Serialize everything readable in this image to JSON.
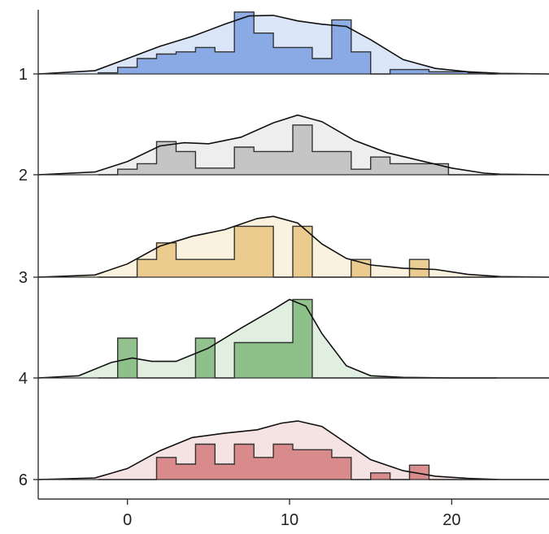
{
  "chart_data": {
    "type": "ridgeline",
    "title": "",
    "xlabel": "",
    "ylabel": "",
    "xlim": [
      -5.5,
      26
    ],
    "x_ticks": [
      0,
      10,
      20
    ],
    "x_tick_labels": [
      "0",
      "10",
      "20"
    ],
    "categories": [
      "1",
      "2",
      "3",
      "4",
      "6"
    ],
    "bin_width": 1.2,
    "hist_x_range": [
      -1.8,
      22.8
    ],
    "series": [
      {
        "category": "1",
        "fill_color": "#a8c0ee",
        "hist_color": "#7ba0e2",
        "bin_edges": [
          -1.8,
          -0.6,
          0.6,
          1.8,
          3.0,
          4.2,
          5.4,
          6.6,
          7.8,
          9.0,
          10.2,
          11.4,
          12.6,
          13.8,
          15.0,
          16.2,
          17.4,
          18.6,
          19.8,
          21.0,
          22.2,
          22.8
        ],
        "bin_heights": [
          0.02,
          0.12,
          0.28,
          0.36,
          0.4,
          0.48,
          0.4,
          1.12,
          0.74,
          0.48,
          0.48,
          0.28,
          0.98,
          0.4,
          0.0,
          0.08,
          0.08,
          0.04,
          0.04,
          0.02,
          0.0
        ],
        "density_x": [
          -5.5,
          -2.0,
          0.0,
          2.0,
          4.0,
          6.0,
          7.5,
          9.0,
          10.5,
          12.0,
          13.5,
          15.0,
          17.0,
          19.0,
          21.0,
          23.0,
          26.0
        ],
        "density_y": [
          0.0,
          0.06,
          0.28,
          0.5,
          0.68,
          0.9,
          1.05,
          1.06,
          0.96,
          0.9,
          0.86,
          0.62,
          0.26,
          0.1,
          0.04,
          0.01,
          0.0
        ]
      },
      {
        "category": "2",
        "fill_color": "#d6d6d6",
        "hist_color": "#bdbdbd",
        "bin_edges": [
          -1.8,
          -0.6,
          0.6,
          1.8,
          3.0,
          4.2,
          5.4,
          6.6,
          7.8,
          9.0,
          10.2,
          11.4,
          12.6,
          13.8,
          15.0,
          16.2,
          17.4,
          18.6,
          19.8,
          21.0,
          22.2,
          22.8
        ],
        "bin_heights": [
          0.0,
          0.1,
          0.2,
          0.6,
          0.42,
          0.12,
          0.12,
          0.5,
          0.42,
          0.42,
          0.9,
          0.42,
          0.42,
          0.1,
          0.32,
          0.2,
          0.2,
          0.2,
          0.0,
          0.0,
          0.0
        ],
        "density_x": [
          -5.5,
          -2.0,
          0.0,
          2.0,
          3.5,
          5.0,
          7.0,
          9.0,
          10.5,
          12.0,
          14.0,
          16.0,
          18.0,
          20.0,
          22.0,
          23.0,
          26.0
        ],
        "density_y": [
          0.0,
          0.05,
          0.24,
          0.52,
          0.58,
          0.56,
          0.68,
          0.94,
          1.08,
          0.96,
          0.62,
          0.4,
          0.26,
          0.12,
          0.03,
          0.01,
          0.0
        ]
      },
      {
        "category": "3",
        "fill_color": "#f4dfb0",
        "hist_color": "#e8c580",
        "bin_edges": [
          -1.8,
          -0.6,
          0.6,
          1.8,
          3.0,
          4.2,
          5.4,
          6.6,
          7.8,
          9.0,
          10.2,
          11.4,
          12.6,
          13.8,
          15.0,
          16.2,
          17.4,
          18.6,
          19.8,
          21.0,
          22.2,
          22.8
        ],
        "bin_heights": [
          0.0,
          0.0,
          0.32,
          0.62,
          0.32,
          0.32,
          0.32,
          0.92,
          0.92,
          0.0,
          0.92,
          0.0,
          0.0,
          0.32,
          0.0,
          0.0,
          0.32,
          0.0,
          0.0,
          0.0,
          0.0
        ],
        "density_x": [
          -5.5,
          -2.0,
          0.0,
          2.0,
          4.0,
          6.0,
          8.0,
          9.0,
          10.5,
          12.0,
          13.5,
          15.0,
          17.0,
          19.0,
          21.0,
          23.0,
          26.0
        ],
        "density_y": [
          0.0,
          0.04,
          0.24,
          0.56,
          0.74,
          0.86,
          1.06,
          1.1,
          0.98,
          0.6,
          0.34,
          0.22,
          0.16,
          0.14,
          0.05,
          0.01,
          0.0
        ]
      },
      {
        "category": "4",
        "fill_color": "#b8d9b4",
        "hist_color": "#7fb77a",
        "bin_edges": [
          -1.8,
          -0.6,
          0.6,
          1.8,
          3.0,
          4.2,
          5.4,
          6.6,
          7.8,
          9.0,
          10.2,
          11.4,
          12.6,
          13.8,
          15.0,
          16.2,
          17.4,
          18.6,
          19.8,
          21.0,
          22.2,
          22.8
        ],
        "bin_heights": [
          0.0,
          0.72,
          0.0,
          0.0,
          0.0,
          0.72,
          0.0,
          0.64,
          0.64,
          0.64,
          1.42,
          0.0,
          0.0,
          0.0,
          0.0,
          0.0,
          0.0,
          0.0,
          0.0,
          0.0,
          0.0
        ],
        "density_x": [
          -5.5,
          -3.0,
          -1.0,
          0.3,
          1.5,
          3.0,
          5.0,
          7.0,
          9.0,
          10.0,
          11.0,
          12.0,
          13.5,
          15.0,
          17.0,
          20.0,
          26.0
        ],
        "density_y": [
          0.0,
          0.04,
          0.28,
          0.36,
          0.3,
          0.3,
          0.54,
          0.9,
          1.24,
          1.42,
          1.3,
          0.8,
          0.22,
          0.04,
          0.01,
          0.0,
          0.0
        ]
      },
      {
        "category": "6",
        "fill_color": "#e8b9b9",
        "hist_color": "#d47a7a",
        "bin_edges": [
          -1.8,
          -0.6,
          0.6,
          1.8,
          3.0,
          4.2,
          5.4,
          6.6,
          7.8,
          9.0,
          10.2,
          11.4,
          12.6,
          13.8,
          15.0,
          16.2,
          17.4,
          18.6,
          19.8,
          21.0,
          22.2,
          22.8
        ],
        "bin_heights": [
          0.0,
          0.0,
          0.0,
          0.4,
          0.28,
          0.64,
          0.28,
          0.64,
          0.4,
          0.64,
          0.54,
          0.54,
          0.4,
          0.0,
          0.12,
          0.0,
          0.26,
          0.0,
          0.0,
          0.0,
          0.0
        ],
        "density_x": [
          -5.5,
          -2.0,
          0.0,
          2.0,
          4.0,
          6.0,
          8.0,
          9.5,
          10.5,
          12.0,
          13.5,
          15.0,
          17.0,
          19.0,
          21.0,
          23.0,
          26.0
        ],
        "density_y": [
          0.0,
          0.03,
          0.2,
          0.52,
          0.76,
          0.84,
          0.9,
          1.02,
          1.06,
          0.96,
          0.66,
          0.36,
          0.16,
          0.06,
          0.02,
          0.0,
          0.0
        ]
      }
    ]
  }
}
